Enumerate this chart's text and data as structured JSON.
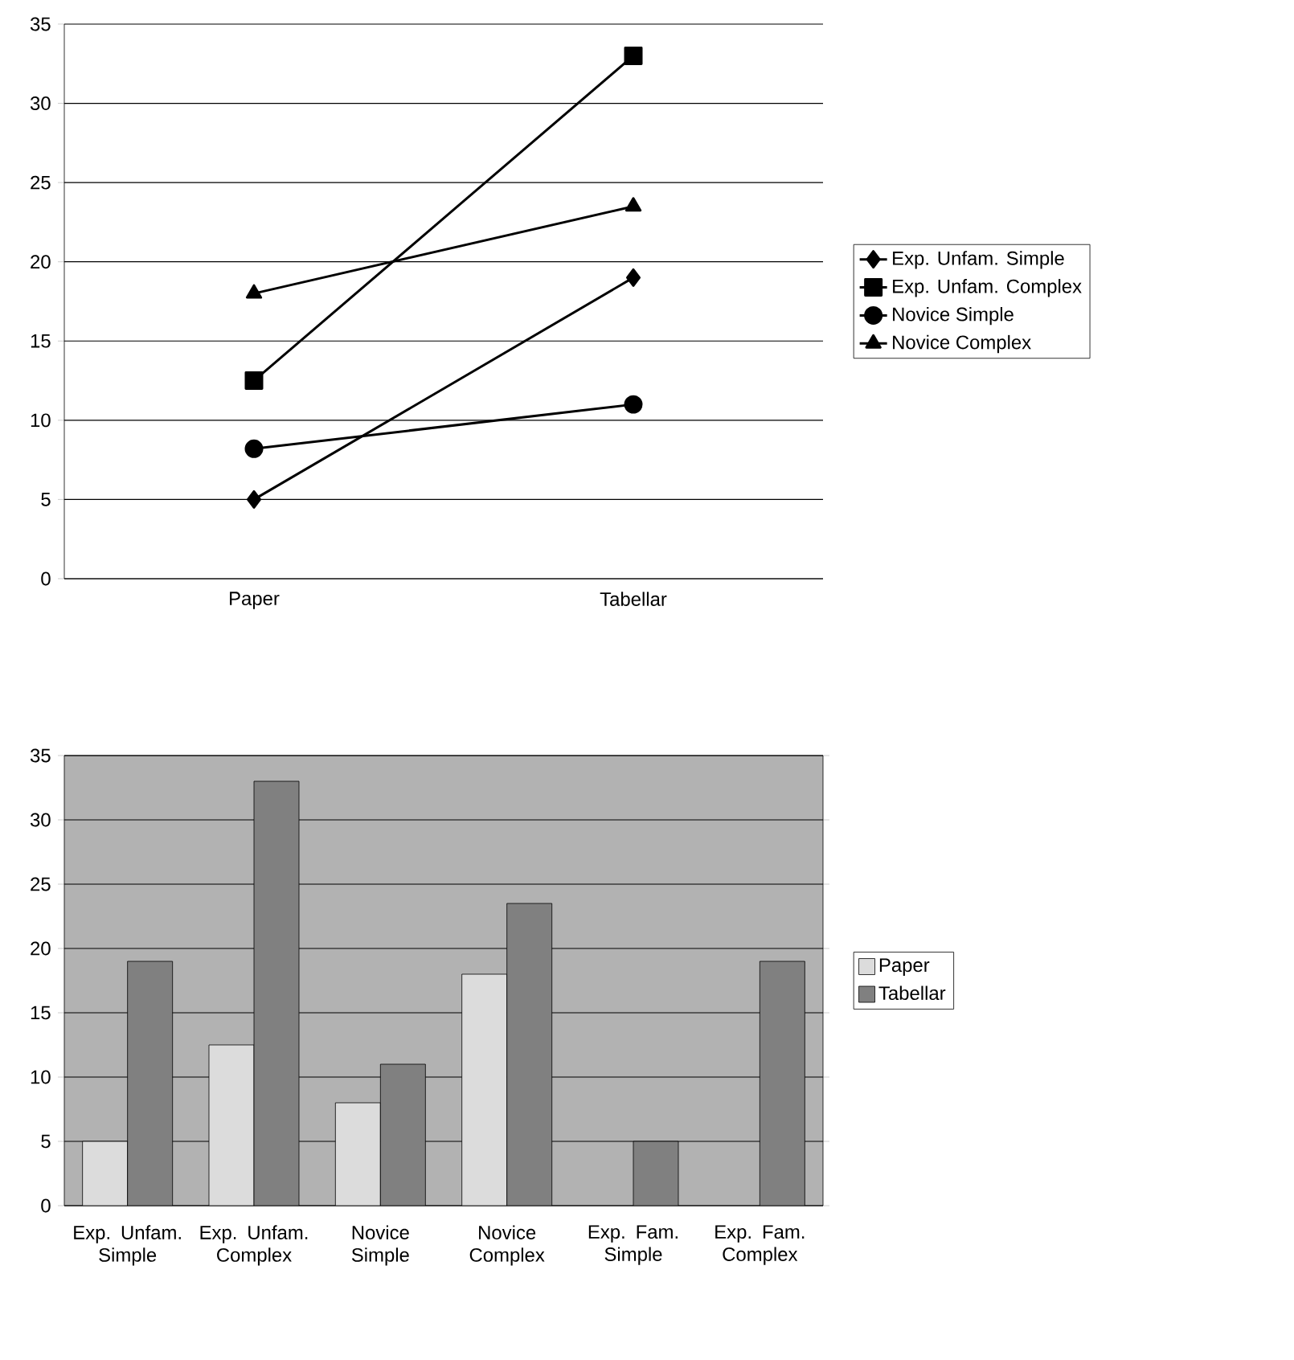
{
  "chart_data": [
    {
      "type": "line",
      "categories": [
        "Paper",
        "Tabellar"
      ],
      "ylim": [
        0,
        35
      ],
      "yticks": [
        0,
        5,
        10,
        15,
        20,
        25,
        30,
        35
      ],
      "grid": "y",
      "legend": "right",
      "series": [
        {
          "name": "Exp. Unfam. Simple",
          "color": "#000000",
          "marker": "diamond",
          "values": [
            5,
            19
          ]
        },
        {
          "name": "Exp. Unfam. Complex",
          "color": "#000000",
          "marker": "square",
          "values": [
            12.5,
            33
          ]
        },
        {
          "name": "Novice Simple",
          "color": "#000000",
          "marker": "circle",
          "values": [
            8.2,
            11
          ]
        },
        {
          "name": "Novice Complex",
          "color": "#000000",
          "marker": "triangle",
          "values": [
            18,
            23.5
          ]
        }
      ]
    },
    {
      "type": "bar",
      "categories": [
        "Exp. Unfam. Simple",
        "Exp. Unfam. Complex",
        "Novice Simple",
        "Novice Complex",
        "Exp. Fam. Simple",
        "Exp. Fam. Complex"
      ],
      "ylim": [
        0,
        35
      ],
      "yticks": [
        0,
        5,
        10,
        15,
        20,
        25,
        30,
        35
      ],
      "grid": "y",
      "legend": "right",
      "series": [
        {
          "name": "Paper",
          "color": "#dcdcdc",
          "values": [
            5,
            12.5,
            8,
            18,
            null,
            null
          ]
        },
        {
          "name": "Tabellar",
          "color": "#808080",
          "values": [
            19,
            33,
            11,
            23.5,
            5,
            19
          ]
        }
      ]
    }
  ]
}
